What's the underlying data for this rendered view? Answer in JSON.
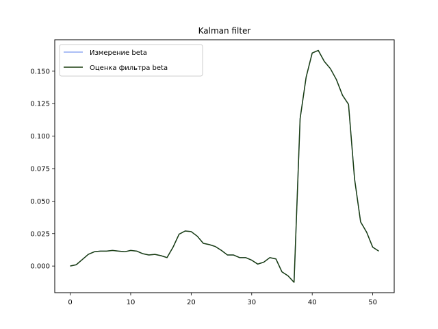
{
  "chart_data": {
    "type": "line",
    "title": "Kalman filter",
    "xlabel": "",
    "ylabel": "",
    "xlim": [
      -2.55,
      53.55
    ],
    "ylim": [
      -0.0205,
      0.1742
    ],
    "xticks": [
      0,
      10,
      20,
      30,
      40,
      50
    ],
    "xtick_labels": [
      "0",
      "10",
      "20",
      "30",
      "40",
      "50"
    ],
    "yticks": [
      0.0,
      0.025,
      0.05,
      0.075,
      0.1,
      0.125,
      0.15
    ],
    "ytick_labels": [
      "0.000",
      "0.025",
      "0.050",
      "0.075",
      "0.100",
      "0.125",
      "0.150"
    ],
    "grid": false,
    "legend_position": "top-left",
    "x": [
      0,
      1,
      2,
      3,
      4,
      5,
      6,
      7,
      8,
      9,
      10,
      11,
      12,
      13,
      14,
      15,
      16,
      17,
      18,
      19,
      20,
      21,
      22,
      23,
      24,
      25,
      26,
      27,
      28,
      29,
      30,
      31,
      32,
      33,
      34,
      35,
      36,
      37,
      38,
      39,
      40,
      41,
      42,
      43,
      44,
      45,
      46,
      47,
      48,
      49,
      50,
      51
    ],
    "series": [
      {
        "name": "Измерение beta",
        "color": "#8fa8f2",
        "values": [
          0.0,
          0.001,
          0.005,
          0.009,
          0.011,
          0.0115,
          0.0115,
          0.012,
          0.0115,
          0.011,
          0.012,
          0.0115,
          0.0095,
          0.0085,
          0.009,
          0.008,
          0.0065,
          0.0145,
          0.0245,
          0.027,
          0.0265,
          0.023,
          0.0175,
          0.0165,
          0.015,
          0.012,
          0.0085,
          0.0085,
          0.0065,
          0.0065,
          0.0045,
          0.0015,
          0.003,
          0.0065,
          0.0055,
          -0.0045,
          -0.0075,
          -0.0125,
          0.1135,
          0.1455,
          0.164,
          0.166,
          0.1575,
          0.152,
          0.1435,
          0.1315,
          0.1245,
          0.067,
          0.034,
          0.026,
          0.0145,
          0.0115
        ]
      },
      {
        "name": "Оценка фильтра beta",
        "color": "#1a3d0f",
        "values": [
          0.0,
          0.001,
          0.005,
          0.009,
          0.011,
          0.0115,
          0.0115,
          0.012,
          0.0115,
          0.011,
          0.012,
          0.0115,
          0.0095,
          0.0085,
          0.009,
          0.008,
          0.0065,
          0.0145,
          0.0245,
          0.027,
          0.0265,
          0.023,
          0.0175,
          0.0165,
          0.015,
          0.012,
          0.0085,
          0.0085,
          0.0065,
          0.0065,
          0.0045,
          0.0015,
          0.003,
          0.0065,
          0.0055,
          -0.0045,
          -0.0075,
          -0.0125,
          0.1135,
          0.1455,
          0.164,
          0.166,
          0.1575,
          0.152,
          0.1435,
          0.1315,
          0.1245,
          0.067,
          0.034,
          0.026,
          0.0145,
          0.0115
        ]
      }
    ]
  }
}
